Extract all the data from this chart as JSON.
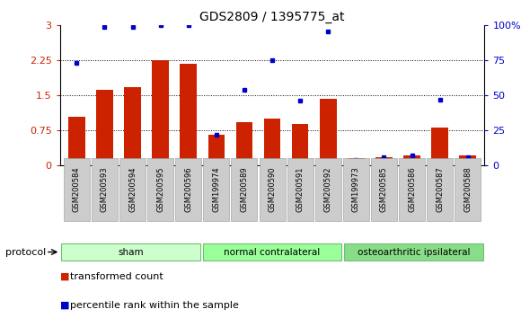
{
  "title": "GDS2809 / 1395775_at",
  "samples": [
    "GSM200584",
    "GSM200593",
    "GSM200594",
    "GSM200595",
    "GSM200596",
    "GSM199974",
    "GSM200589",
    "GSM200590",
    "GSM200591",
    "GSM200592",
    "GSM199973",
    "GSM200585",
    "GSM200586",
    "GSM200587",
    "GSM200588"
  ],
  "transformed_count": [
    1.05,
    1.62,
    1.68,
    2.25,
    2.17,
    0.65,
    0.92,
    1.0,
    0.88,
    1.42,
    0.15,
    0.18,
    0.22,
    0.82,
    0.22
  ],
  "percentile_rank_pct": [
    73,
    99,
    99,
    100,
    100,
    22,
    54,
    75,
    46,
    96,
    4,
    6,
    7,
    47,
    6
  ],
  "groups": [
    {
      "name": "sham",
      "indices": [
        0,
        1,
        2,
        3,
        4
      ]
    },
    {
      "name": "normal contralateral",
      "indices": [
        5,
        6,
        7,
        8,
        9
      ]
    },
    {
      "name": "osteoarthritic ipsilateral",
      "indices": [
        10,
        11,
        12,
        13,
        14
      ]
    }
  ],
  "group_colors": [
    "#ccffcc",
    "#99ff99",
    "#88dd88"
  ],
  "group_border_color": "#77bb77",
  "bar_color": "#cc2200",
  "dot_color": "#0000cc",
  "left_ylim": [
    0,
    3.0
  ],
  "right_ylim": [
    0,
    100
  ],
  "left_yticks": [
    0,
    0.75,
    1.5,
    2.25,
    3.0
  ],
  "right_yticks": [
    0,
    25,
    50,
    75,
    100
  ],
  "left_yticklabels": [
    "0",
    "0.75",
    "1.5",
    "2.25",
    "3"
  ],
  "right_yticklabels": [
    "0",
    "25",
    "50",
    "75",
    "100%"
  ],
  "protocol_label": "protocol",
  "legend_items": [
    {
      "label": "transformed count",
      "color": "#cc2200"
    },
    {
      "label": "percentile rank within the sample",
      "color": "#0000cc"
    }
  ],
  "bg_color": "#ffffff",
  "tick_bg_color": "#cccccc"
}
